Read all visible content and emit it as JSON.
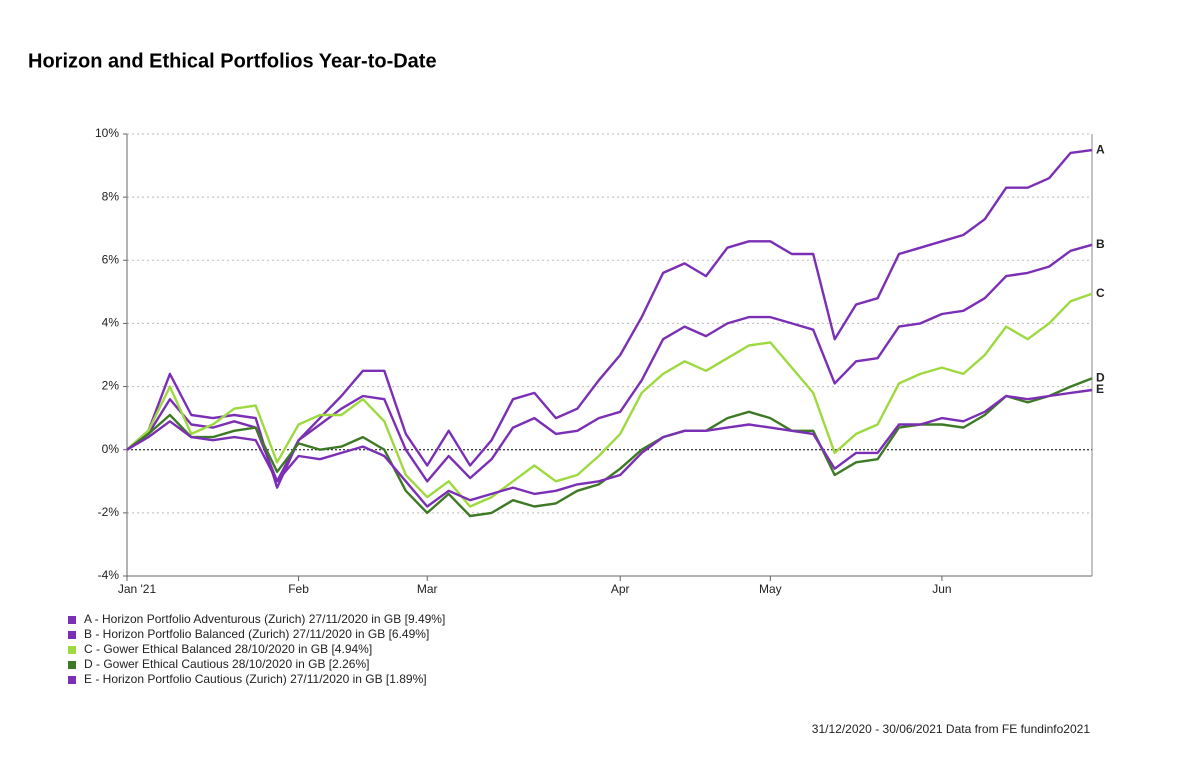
{
  "chart_data": {
    "type": "line",
    "title": "Horizon and Ethical Portfolios Year-to-Date",
    "footer": "31/12/2020 - 30/06/2021 Data from FE fundinfo2021",
    "categories": [
      "Jan '21",
      null,
      null,
      null,
      null,
      null,
      null,
      null,
      "Feb",
      null,
      null,
      null,
      null,
      null,
      "Mar",
      null,
      null,
      null,
      null,
      null,
      null,
      null,
      null,
      "Apr",
      null,
      null,
      null,
      null,
      null,
      null,
      "May",
      null,
      null,
      null,
      null,
      null,
      null,
      null,
      "Jun",
      null,
      null,
      null,
      null,
      null,
      null,
      null
    ],
    "ylim": [
      -4,
      10
    ],
    "yticks": [
      {
        "value": -4,
        "label": "-4%"
      },
      {
        "value": -2,
        "label": "-2%"
      },
      {
        "value": 0,
        "label": "0%"
      },
      {
        "value": 2,
        "label": "2%"
      },
      {
        "value": 4,
        "label": "4%"
      },
      {
        "value": 6,
        "label": "6%"
      },
      {
        "value": 8,
        "label": "8%"
      },
      {
        "value": 10,
        "label": "10%"
      }
    ],
    "grid": true,
    "series": [
      {
        "name": "A - Horizon Portfolio Adventurous (Zurich) 27/11/2020 in GB [9.49%]",
        "end_label": "A",
        "color": "#7b2fb5",
        "values": [
          0,
          0.6,
          2.4,
          1.1,
          1.0,
          1.1,
          1.0,
          -1.2,
          0.3,
          1.0,
          1.7,
          2.5,
          2.5,
          0.5,
          -0.5,
          0.6,
          -0.5,
          0.3,
          1.6,
          1.8,
          1.0,
          1.3,
          2.2,
          3.0,
          4.2,
          5.6,
          5.9,
          5.5,
          6.4,
          6.6,
          6.6,
          6.2,
          6.2,
          3.5,
          4.6,
          4.8,
          6.2,
          6.4,
          6.6,
          6.8,
          7.3,
          8.3,
          8.3,
          8.6,
          9.4,
          9.49
        ]
      },
      {
        "name": "B - Horizon Portfolio Balanced (Zurich) 27/11/2020 in GB [6.49%]",
        "end_label": "B",
        "color": "#7b2fb5",
        "values": [
          0,
          0.5,
          1.6,
          0.8,
          0.7,
          0.9,
          0.7,
          -1.0,
          0.3,
          0.8,
          1.3,
          1.7,
          1.6,
          0.0,
          -1.0,
          -0.2,
          -0.9,
          -0.3,
          0.7,
          1.0,
          0.5,
          0.6,
          1.0,
          1.2,
          2.2,
          3.5,
          3.9,
          3.6,
          4.0,
          4.2,
          4.2,
          4.0,
          3.8,
          2.1,
          2.8,
          2.9,
          3.9,
          4.0,
          4.3,
          4.4,
          4.8,
          5.5,
          5.6,
          5.8,
          6.3,
          6.49
        ]
      },
      {
        "name": "C - Gower Ethical Balanced 28/10/2020 in GB [4.94%]",
        "end_label": "C",
        "color": "#9ed93f",
        "values": [
          0,
          0.6,
          2.0,
          0.5,
          0.8,
          1.3,
          1.4,
          -0.4,
          0.8,
          1.1,
          1.1,
          1.6,
          0.9,
          -0.8,
          -1.5,
          -1.0,
          -1.8,
          -1.5,
          -1.0,
          -0.5,
          -1.0,
          -0.8,
          -0.2,
          0.5,
          1.8,
          2.4,
          2.8,
          2.5,
          2.9,
          3.3,
          3.4,
          2.6,
          1.8,
          -0.1,
          0.5,
          0.8,
          2.1,
          2.4,
          2.6,
          2.4,
          3.0,
          3.9,
          3.5,
          4.0,
          4.7,
          4.94
        ]
      },
      {
        "name": "D - Gower Ethical Cautious 28/10/2020 in GB [2.26%]",
        "end_label": "D",
        "color": "#3e7a25",
        "values": [
          0,
          0.5,
          1.1,
          0.4,
          0.4,
          0.6,
          0.7,
          -0.7,
          0.2,
          0.0,
          0.1,
          0.4,
          0.0,
          -1.3,
          -2.0,
          -1.4,
          -2.1,
          -2.0,
          -1.6,
          -1.8,
          -1.7,
          -1.3,
          -1.1,
          -0.6,
          0.0,
          0.4,
          0.6,
          0.6,
          1.0,
          1.2,
          1.0,
          0.6,
          0.6,
          -0.8,
          -0.4,
          -0.3,
          0.7,
          0.8,
          0.8,
          0.7,
          1.1,
          1.7,
          1.5,
          1.7,
          2.0,
          2.26
        ]
      },
      {
        "name": "E - Horizon Portfolio Cautious (Zurich) 27/11/2020 in GB [1.89%]",
        "end_label": "E",
        "color": "#7b2fb5",
        "values": [
          0,
          0.4,
          0.9,
          0.4,
          0.3,
          0.4,
          0.3,
          -1.0,
          -0.2,
          -0.3,
          -0.1,
          0.1,
          -0.2,
          -1.0,
          -1.8,
          -1.3,
          -1.6,
          -1.4,
          -1.2,
          -1.4,
          -1.3,
          -1.1,
          -1.0,
          -0.8,
          -0.1,
          0.4,
          0.6,
          0.6,
          0.7,
          0.8,
          0.7,
          0.6,
          0.5,
          -0.6,
          -0.1,
          -0.1,
          0.8,
          0.8,
          1.0,
          0.9,
          1.2,
          1.7,
          1.6,
          1.7,
          1.8,
          1.89
        ]
      }
    ]
  }
}
